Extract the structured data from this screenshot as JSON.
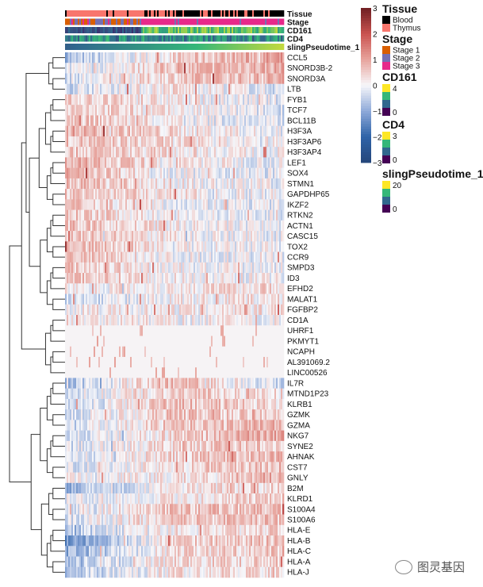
{
  "chart_data": {
    "type": "heatmap",
    "title": "",
    "rows": [
      {
        "gene": "CCL5",
        "profile": [
          -0.8,
          0.4,
          1.0
        ]
      },
      {
        "gene": "SNORD3B-2",
        "profile": [
          -0.3,
          0.6,
          0.9
        ]
      },
      {
        "gene": "SNORD3A",
        "profile": [
          -0.3,
          0.5,
          0.8
        ]
      },
      {
        "gene": "LTB",
        "profile": [
          -0.3,
          0.3,
          -0.3
        ]
      },
      {
        "gene": "FYB1",
        "profile": [
          0.5,
          0.1,
          -0.2
        ]
      },
      {
        "gene": "TCF7",
        "profile": [
          0.6,
          0.1,
          -0.3
        ]
      },
      {
        "gene": "BCL11B",
        "profile": [
          0.7,
          0.0,
          -0.3
        ]
      },
      {
        "gene": "H3F3A",
        "profile": [
          0.9,
          0.3,
          -0.1
        ]
      },
      {
        "gene": "H3F3AP6",
        "profile": [
          0.6,
          0.3,
          0.0
        ]
      },
      {
        "gene": "H3F3AP4",
        "profile": [
          0.6,
          0.3,
          0.0
        ]
      },
      {
        "gene": "LEF1",
        "profile": [
          0.8,
          0.2,
          -0.1
        ]
      },
      {
        "gene": "SOX4",
        "profile": [
          0.9,
          0.0,
          -0.2
        ]
      },
      {
        "gene": "STMN1",
        "profile": [
          0.7,
          0.1,
          -0.1
        ]
      },
      {
        "gene": "GAPDHP65",
        "profile": [
          0.6,
          0.2,
          -0.1
        ]
      },
      {
        "gene": "IKZF2",
        "profile": [
          0.6,
          0.0,
          -0.2
        ]
      },
      {
        "gene": "RTKN2",
        "profile": [
          0.6,
          0.0,
          -0.2
        ]
      },
      {
        "gene": "ACTN1",
        "profile": [
          0.6,
          0.1,
          -0.1
        ]
      },
      {
        "gene": "CASC15",
        "profile": [
          0.6,
          0.1,
          -0.1
        ]
      },
      {
        "gene": "TOX2",
        "profile": [
          0.8,
          0.0,
          -0.1
        ]
      },
      {
        "gene": "CCR9",
        "profile": [
          0.7,
          0.0,
          -0.1
        ]
      },
      {
        "gene": "SMPD3",
        "profile": [
          0.6,
          0.0,
          -0.1
        ]
      },
      {
        "gene": "ID3",
        "profile": [
          0.7,
          0.1,
          0.0
        ]
      },
      {
        "gene": "EFHD2",
        "profile": [
          0.1,
          0.2,
          0.4
        ]
      },
      {
        "gene": "MALAT1",
        "profile": [
          -0.4,
          0.1,
          0.2
        ]
      },
      {
        "gene": "FGFBP2",
        "profile": [
          0.1,
          0.1,
          0.3
        ]
      },
      {
        "gene": "CD1A",
        "profile": [
          0.3,
          0.05,
          0.05
        ]
      },
      {
        "gene": "UHRF1",
        "profile": [
          0.05,
          0.05,
          0.05
        ]
      },
      {
        "gene": "PKMYT1",
        "profile": [
          0.05,
          0.05,
          0.05
        ]
      },
      {
        "gene": "NCAPH",
        "profile": [
          0.05,
          0.05,
          0.05
        ]
      },
      {
        "gene": "AL391069.2",
        "profile": [
          0.05,
          0.05,
          0.05
        ]
      },
      {
        "gene": "LINC00526",
        "profile": [
          0.05,
          0.05,
          0.05
        ]
      },
      {
        "gene": "IL7R",
        "profile": [
          -0.7,
          0.8,
          -0.4
        ]
      },
      {
        "gene": "MTND1P23",
        "profile": [
          -0.3,
          0.5,
          0.3
        ]
      },
      {
        "gene": "KLRB1",
        "profile": [
          -0.6,
          0.7,
          0.3
        ]
      },
      {
        "gene": "GZMK",
        "profile": [
          -0.4,
          0.6,
          0.4
        ]
      },
      {
        "gene": "GZMA",
        "profile": [
          -0.4,
          0.5,
          0.8
        ]
      },
      {
        "gene": "NKG7",
        "profile": [
          -0.4,
          0.4,
          1.0
        ]
      },
      {
        "gene": "SYNE2",
        "profile": [
          -0.3,
          0.4,
          0.6
        ]
      },
      {
        "gene": "AHNAK",
        "profile": [
          -0.3,
          0.4,
          0.7
        ]
      },
      {
        "gene": "CST7",
        "profile": [
          -0.2,
          0.3,
          0.7
        ]
      },
      {
        "gene": "GNLY",
        "profile": [
          -0.1,
          0.2,
          0.9
        ]
      },
      {
        "gene": "B2M",
        "profile": [
          -0.8,
          0.2,
          0.4
        ]
      },
      {
        "gene": "KLRD1",
        "profile": [
          -0.1,
          0.2,
          0.6
        ]
      },
      {
        "gene": "S100A4",
        "profile": [
          -0.3,
          0.6,
          0.6
        ]
      },
      {
        "gene": "S100A6",
        "profile": [
          -0.3,
          0.5,
          0.6
        ]
      },
      {
        "gene": "HLA-E",
        "profile": [
          -0.6,
          0.2,
          0.4
        ]
      },
      {
        "gene": "HLA-B",
        "profile": [
          -1.2,
          0.4,
          0.6
        ]
      },
      {
        "gene": "HLA-C",
        "profile": [
          -1.0,
          0.3,
          0.5
        ]
      },
      {
        "gene": "HLA-A",
        "profile": [
          -0.8,
          0.3,
          0.5
        ]
      },
      {
        "gene": "HLA-J",
        "profile": [
          -0.6,
          0.2,
          0.4
        ]
      }
    ],
    "row_dendrogram": true,
    "columns_ordered_by": "slingPseudotime_1",
    "color_scale": {
      "min": -3,
      "max": 3,
      "ticks": [
        "3",
        "2",
        "1",
        "0",
        "−1",
        "−2",
        "−3"
      ],
      "stops": [
        [
          "-3",
          "#24457A"
        ],
        [
          "-2",
          "#2E63A8"
        ],
        [
          "-1",
          "#8FAAD9"
        ],
        [
          "0",
          "#F7F7FA"
        ],
        [
          "1",
          "#E7A39C"
        ],
        [
          "2",
          "#C9524F"
        ],
        [
          "3",
          "#6E1E22"
        ]
      ]
    },
    "annotations": [
      {
        "name": "Tissue",
        "type": "categorical",
        "levels": [
          {
            "label": "Blood",
            "color": "#000000"
          },
          {
            "label": "Thymus",
            "color": "#F8766D"
          }
        ]
      },
      {
        "name": "Stage",
        "type": "categorical",
        "levels": [
          {
            "label": "Stage 1",
            "color": "#D95F02"
          },
          {
            "label": "Stage 2",
            "color": "#7570B3"
          },
          {
            "label": "Stage 3",
            "color": "#E7298A"
          }
        ]
      },
      {
        "name": "CD161",
        "type": "continuous",
        "max_label": "4",
        "min_label": "0",
        "colors": [
          "#FDE725",
          "#35B779",
          "#31688E",
          "#440154"
        ]
      },
      {
        "name": "CD4",
        "type": "continuous",
        "max_label": "3",
        "min_label": "0",
        "colors": [
          "#FDE725",
          "#35B779",
          "#31688E",
          "#440154"
        ]
      },
      {
        "name": "slingPseudotime_1",
        "type": "continuous",
        "max_label": "20",
        "min_label": "0",
        "colors": [
          "#FDE725",
          "#35B779",
          "#31688E",
          "#440154"
        ]
      }
    ]
  },
  "watermark": "图灵基因"
}
